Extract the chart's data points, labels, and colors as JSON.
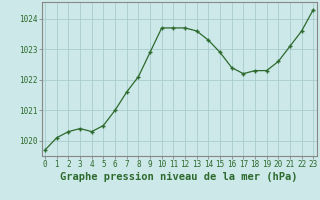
{
  "x": [
    0,
    1,
    2,
    3,
    4,
    5,
    6,
    7,
    8,
    9,
    10,
    11,
    12,
    13,
    14,
    15,
    16,
    17,
    18,
    19,
    20,
    21,
    22,
    23
  ],
  "y": [
    1019.7,
    1020.1,
    1020.3,
    1020.4,
    1020.3,
    1020.5,
    1021.0,
    1021.6,
    1022.1,
    1022.9,
    1023.7,
    1023.7,
    1023.7,
    1023.6,
    1023.3,
    1022.9,
    1022.4,
    1022.2,
    1022.3,
    1022.3,
    1022.6,
    1023.1,
    1023.6,
    1024.3
  ],
  "line_color": "#2d6a2d",
  "marker": "+",
  "marker_size": 3,
  "marker_linewidth": 1.0,
  "linewidth": 0.9,
  "background_color": "#cce8e8",
  "grid_color": "#aacccc",
  "ylabel_ticks": [
    1020,
    1021,
    1022,
    1023,
    1024
  ],
  "xlabel_ticks": [
    0,
    1,
    2,
    3,
    4,
    5,
    6,
    7,
    8,
    9,
    10,
    11,
    12,
    13,
    14,
    15,
    16,
    17,
    18,
    19,
    20,
    21,
    22,
    23
  ],
  "ylim": [
    1019.5,
    1024.55
  ],
  "xlim": [
    -0.3,
    23.3
  ],
  "xlabel": "Graphe pression niveau de la mer (hPa)",
  "xlabel_fontsize": 7.5,
  "tick_fontsize": 5.5,
  "tick_color": "#2d6a2d",
  "label_color": "#2d6a2d",
  "spine_color": "#888888",
  "fig_width": 3.2,
  "fig_height": 2.0,
  "dpi": 100
}
